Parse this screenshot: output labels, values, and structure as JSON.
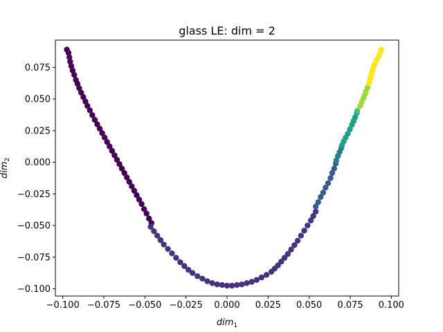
{
  "chart_data": {
    "type": "scatter",
    "title": "glass LE: dim = 2",
    "xlabel": "dim",
    "xlabel_sub": "1",
    "ylabel": "dim",
    "ylabel_sub": "2",
    "xlim": [
      -0.1045,
      0.1045
    ],
    "ylim": [
      -0.1057,
      0.0965
    ],
    "xticks": [
      -0.1,
      -0.075,
      -0.05,
      -0.025,
      0.0,
      0.025,
      0.05,
      0.075,
      0.1
    ],
    "xtick_labels": [
      "−0.100",
      "−0.075",
      "−0.050",
      "−0.025",
      "0.000",
      "0.025",
      "0.050",
      "0.075",
      "0.100"
    ],
    "yticks": [
      -0.1,
      -0.075,
      -0.05,
      -0.025,
      0.0,
      0.025,
      0.05,
      0.075
    ],
    "ytick_labels": [
      "−0.100",
      "−0.075",
      "−0.050",
      "−0.025",
      "0.000",
      "0.025",
      "0.050",
      "0.075"
    ],
    "grid": false,
    "legend": "none",
    "colormap": "viridis",
    "colors": {
      "purple": "#440154",
      "indigo": "#46327e",
      "blue": "#365c8d",
      "teal": "#277f8e",
      "green": "#1fa187",
      "green2": "#4ac16d",
      "lime": "#a0da39",
      "yellow": "#fde725"
    },
    "series": [
      {
        "color": "purple",
        "points": [
          [
            -0.0975,
            0.089
          ],
          [
            -0.0965,
            0.0865
          ],
          [
            -0.096,
            0.083
          ],
          [
            -0.0955,
            0.0795
          ],
          [
            -0.0948,
            0.076
          ],
          [
            -0.094,
            0.0725
          ],
          [
            -0.093,
            0.069
          ],
          [
            -0.092,
            0.065
          ],
          [
            -0.091,
            0.062
          ],
          [
            -0.09,
            0.0585
          ],
          [
            -0.0888,
            0.055
          ],
          [
            -0.0875,
            0.0515
          ],
          [
            -0.0862,
            0.048
          ],
          [
            -0.085,
            0.0445
          ],
          [
            -0.0835,
            0.041
          ],
          [
            -0.082,
            0.0372
          ],
          [
            -0.0805,
            0.0335
          ],
          [
            -0.079,
            0.03
          ],
          [
            -0.0775,
            0.0265
          ],
          [
            -0.076,
            0.023
          ],
          [
            -0.0745,
            0.0195
          ],
          [
            -0.073,
            0.016
          ],
          [
            -0.0715,
            0.0125
          ],
          [
            -0.07,
            0.009
          ],
          [
            -0.0685,
            0.0055
          ],
          [
            -0.067,
            0.002
          ],
          [
            -0.0655,
            -0.0015
          ],
          [
            -0.064,
            -0.005
          ],
          [
            -0.0625,
            -0.0085
          ],
          [
            -0.061,
            -0.012
          ],
          [
            -0.0595,
            -0.0155
          ],
          [
            -0.058,
            -0.019
          ],
          [
            -0.0565,
            -0.0225
          ],
          [
            -0.055,
            -0.026
          ],
          [
            -0.0535,
            -0.0295
          ],
          [
            -0.052,
            -0.033
          ],
          [
            -0.0505,
            -0.037
          ],
          [
            -0.049,
            -0.0405
          ],
          [
            -0.0475,
            -0.0445
          ],
          [
            -0.046,
            -0.048
          ]
        ]
      },
      {
        "color": "indigo",
        "points": [
          [
            -0.0465,
            -0.051
          ],
          [
            -0.0445,
            -0.0545
          ],
          [
            -0.0425,
            -0.058
          ],
          [
            -0.0405,
            -0.0615
          ],
          [
            -0.0385,
            -0.065
          ],
          [
            -0.036,
            -0.0685
          ],
          [
            -0.0335,
            -0.072
          ],
          [
            -0.031,
            -0.0755
          ],
          [
            -0.0285,
            -0.079
          ],
          [
            -0.026,
            -0.082
          ],
          [
            -0.0235,
            -0.085
          ],
          [
            -0.021,
            -0.0875
          ],
          [
            -0.018,
            -0.09
          ],
          [
            -0.015,
            -0.092
          ],
          [
            -0.012,
            -0.094
          ],
          [
            -0.009,
            -0.0955
          ],
          [
            -0.006,
            -0.0965
          ],
          [
            -0.003,
            -0.097
          ],
          [
            0.0,
            -0.0975
          ],
          [
            0.003,
            -0.0975
          ],
          [
            0.006,
            -0.097
          ],
          [
            0.009,
            -0.0965
          ],
          [
            0.012,
            -0.0955
          ],
          [
            0.015,
            -0.0945
          ],
          [
            0.018,
            -0.093
          ],
          [
            0.021,
            -0.091
          ],
          [
            0.024,
            -0.089
          ],
          [
            0.027,
            -0.0865
          ],
          [
            0.029,
            -0.084
          ],
          [
            0.031,
            -0.0815
          ],
          [
            0.033,
            -0.0785
          ],
          [
            0.035,
            -0.0755
          ],
          [
            0.037,
            -0.0725
          ],
          [
            0.039,
            -0.069
          ],
          [
            0.041,
            -0.0655
          ],
          [
            0.043,
            -0.062
          ],
          [
            0.045,
            -0.058
          ],
          [
            0.047,
            -0.054
          ],
          [
            0.049,
            -0.05
          ],
          [
            0.051,
            -0.046
          ],
          [
            0.0525,
            -0.0425
          ],
          [
            0.054,
            -0.039
          ]
        ]
      },
      {
        "color": "blue",
        "points": [
          [
            0.054,
            -0.035
          ],
          [
            0.0555,
            -0.0315
          ],
          [
            0.057,
            -0.0275
          ],
          [
            0.0585,
            -0.024
          ],
          [
            0.06,
            -0.02
          ],
          [
            0.0615,
            -0.0165
          ],
          [
            0.063,
            -0.0125
          ],
          [
            0.064,
            -0.0085
          ],
          [
            0.0652,
            -0.005
          ],
          [
            0.0662,
            -0.001
          ]
        ]
      },
      {
        "color": "teal",
        "points": [
          [
            0.0665,
            0.0015
          ],
          [
            0.0675,
            0.005
          ],
          [
            0.0685,
            0.008
          ],
          [
            0.0695,
            0.011
          ]
        ]
      },
      {
        "color": "green",
        "points": [
          [
            0.07,
            0.0135
          ],
          [
            0.071,
            0.0165
          ],
          [
            0.0722,
            0.0195
          ],
          [
            0.0735,
            0.0225
          ],
          [
            0.0748,
            0.026
          ],
          [
            0.076,
            0.0295
          ],
          [
            0.077,
            0.0325
          ],
          [
            0.078,
            0.0355
          ],
          [
            0.079,
            0.039
          ]
        ]
      },
      {
        "color": "green2",
        "points": [
          [
            0.0792,
            0.0405
          ]
        ]
      },
      {
        "color": "lime",
        "points": [
          [
            0.081,
            0.0445
          ],
          [
            0.082,
            0.0475
          ],
          [
            0.083,
            0.0505
          ],
          [
            0.0838,
            0.053
          ],
          [
            0.0846,
            0.056
          ],
          [
            0.0855,
            0.059
          ]
        ]
      },
      {
        "color": "yellow",
        "points": [
          [
            0.0865,
            0.0625
          ],
          [
            0.087,
            0.065
          ],
          [
            0.0875,
            0.0675
          ],
          [
            0.088,
            0.07
          ],
          [
            0.0885,
            0.0725
          ],
          [
            0.089,
            0.075
          ],
          [
            0.0898,
            0.0775
          ],
          [
            0.091,
            0.0805
          ],
          [
            0.0922,
            0.0835
          ],
          [
            0.0932,
            0.0865
          ],
          [
            0.094,
            0.089
          ]
        ]
      }
    ]
  }
}
